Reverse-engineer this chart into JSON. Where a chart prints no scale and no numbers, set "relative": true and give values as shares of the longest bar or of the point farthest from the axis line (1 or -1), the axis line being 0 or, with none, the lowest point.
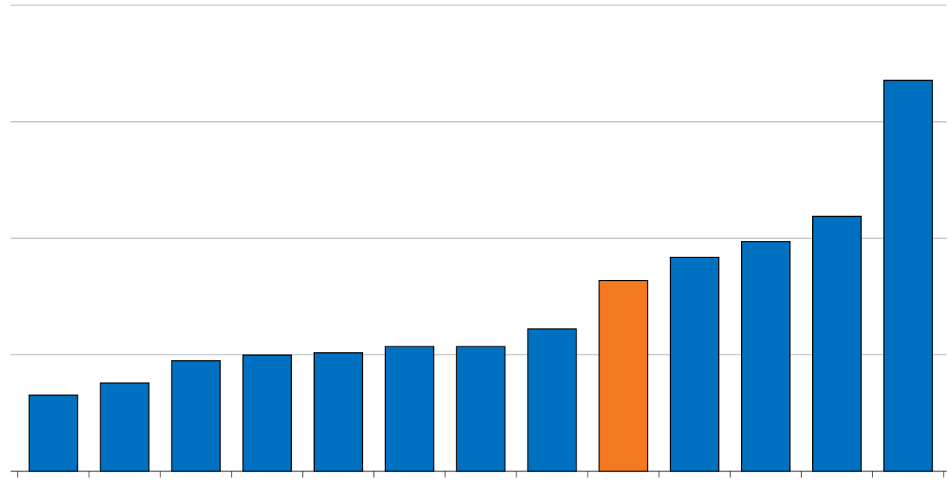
{
  "chart_data": {
    "type": "bar",
    "relative": true,
    "grid": "y",
    "categories": [
      null,
      null,
      null,
      null,
      null,
      null,
      null,
      null,
      null,
      null,
      null,
      null,
      null
    ],
    "values": [
      0.195,
      0.226,
      0.283,
      0.297,
      0.303,
      0.319,
      0.319,
      0.364,
      0.488,
      0.547,
      0.587,
      0.652,
      1
    ],
    "colors": [
      "#0070c0",
      "#0070c0",
      "#0070c0",
      "#0070c0",
      "#0070c0",
      "#0070c0",
      "#0070c0",
      "#0070c0",
      "#f47920",
      "#0070c0",
      "#0070c0",
      "#0070c0",
      "#0070c0"
    ]
  }
}
